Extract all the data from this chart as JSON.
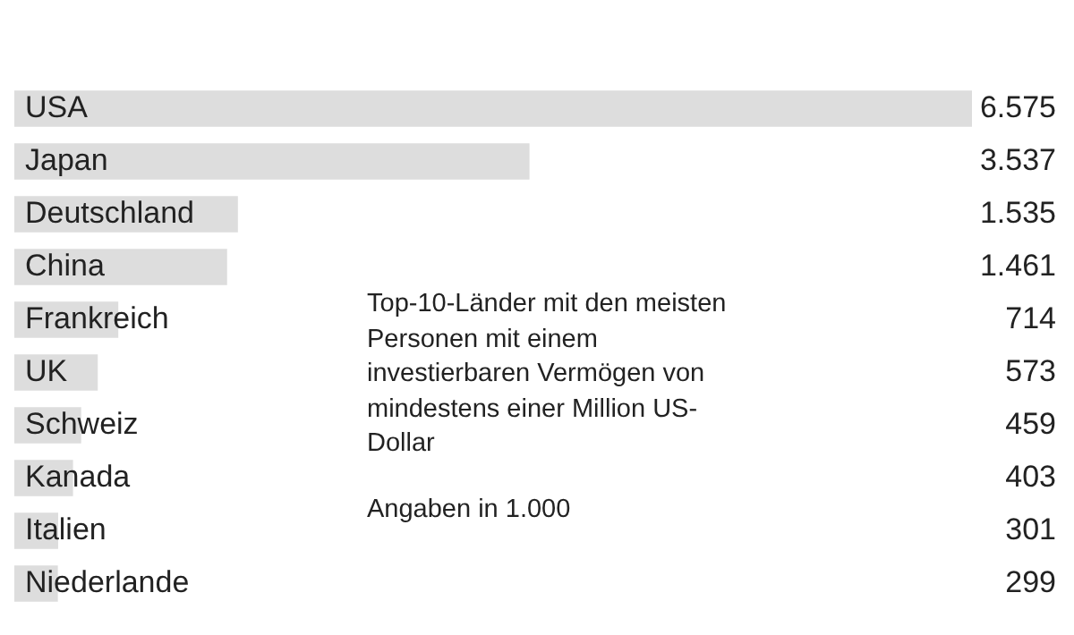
{
  "chart_data": {
    "type": "bar",
    "orientation": "horizontal",
    "title": "Top-10-Länder mit den meisten Personen mit einem investierbaren Vermögen von mindestens einer Million US-Dollar",
    "subtitle": "Angaben in 1.000",
    "categories": [
      "USA",
      "Japan",
      "Deutschland",
      "China",
      "Frankreich",
      "UK",
      "Schweiz",
      "Kanada",
      "Italien",
      "Niederlande"
    ],
    "values": [
      6575,
      3537,
      1535,
      1461,
      714,
      573,
      459,
      403,
      301,
      299
    ],
    "value_labels": [
      "6.575",
      "3.537",
      "1.535",
      "1.461",
      "714",
      "573",
      "459",
      "403",
      "301",
      "299"
    ],
    "color": "#dddddd",
    "legend": false
  }
}
